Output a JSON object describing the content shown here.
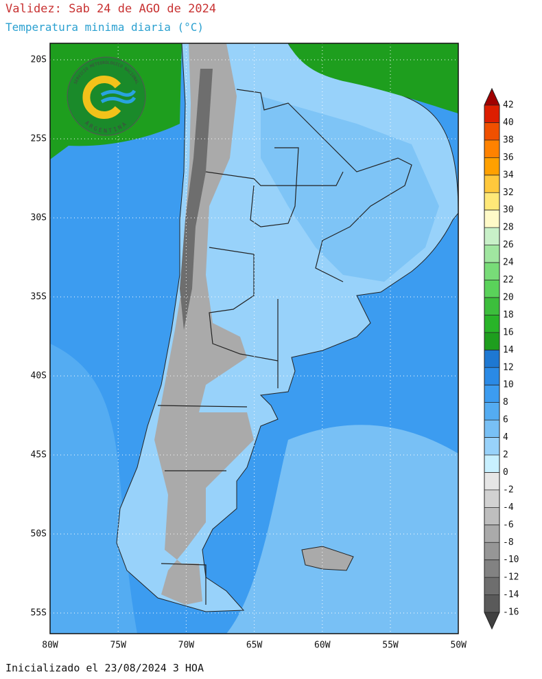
{
  "header": {
    "title": "Validez: Sab 24 de AGO de 2024",
    "subtitle": "Temperatura minima diaria (°C)"
  },
  "map": {
    "lat_labels": [
      "20S",
      "25S",
      "30S",
      "35S",
      "40S",
      "45S",
      "50S",
      "55S"
    ],
    "lon_labels": [
      "80W",
      "75W",
      "70W",
      "65W",
      "60W",
      "55W",
      "50W"
    ]
  },
  "logo": {
    "top": "SERVICIO METEOROLOGICO NACIONAL",
    "bottom": "ARGENTINA"
  },
  "colorbar": {
    "levels": [
      42,
      40,
      38,
      36,
      34,
      32,
      30,
      28,
      26,
      24,
      22,
      20,
      18,
      16,
      14,
      12,
      10,
      8,
      6,
      4,
      2,
      0,
      -2,
      -4,
      -6,
      -8,
      -10,
      -12,
      -14,
      -16
    ],
    "colors": [
      "#dc1e00",
      "#f05000",
      "#ff8200",
      "#ffa000",
      "#ffc83c",
      "#ffe878",
      "#fffac8",
      "#c8f0c8",
      "#a0e6a0",
      "#78dc78",
      "#5ad25a",
      "#3cbe3c",
      "#28b428",
      "#1e9e1e",
      "#1e78d2",
      "#2a8ae6",
      "#3c9cf0",
      "#54acf2",
      "#78c0f5",
      "#98d2fa",
      "#c8f0ff",
      "#e6e6e6",
      "#d2d2d2",
      "#bebebe",
      "#aaaaaa",
      "#969696",
      "#828282",
      "#6e6e6e",
      "#5a5a5a"
    ],
    "over_color": "#a00000",
    "under_color": "#404040"
  },
  "footer": "Inicializado el 23/08/2024 3 HOA"
}
